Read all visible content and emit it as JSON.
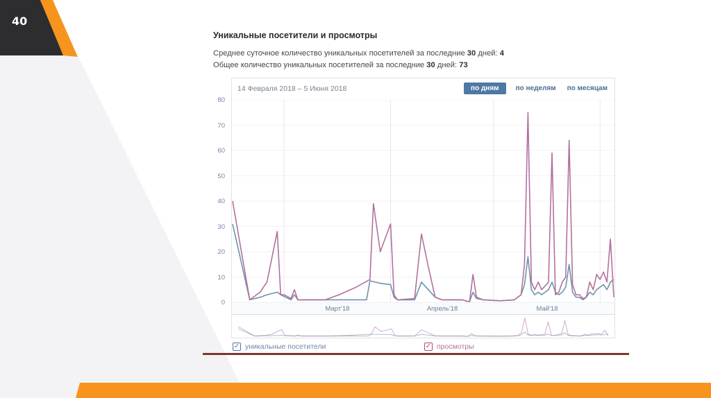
{
  "slide": {
    "number": "40",
    "accent_orange": "#f7941d",
    "maroon_line_color": "#7e362d",
    "dark_corner_color": "#2d2d2f"
  },
  "stats": {
    "title": "Уникальные посетители и просмотры",
    "avg_line": {
      "t1": "Среднее суточное количество уникальных посетителей за последние",
      "b1": "30",
      "t2": "дней:",
      "b2": "4"
    },
    "total_line": {
      "t1": "Общее количество уникальных посетителей за последние",
      "b1": "30",
      "t2": "дней:",
      "b2": "73"
    }
  },
  "widget": {
    "date_range": "14 Февраля 2018 – 5 Июня 2018",
    "tabs": {
      "active_index": 0,
      "items": [
        "по дням",
        "по неделям",
        "по месяцам"
      ]
    },
    "legend": [
      {
        "label": "уникальные посетители",
        "checked": true,
        "color": "#4a76a8"
      },
      {
        "label": "просмотры",
        "checked": true,
        "color": "#b14f62"
      }
    ],
    "check_glyph": "✓"
  },
  "chart_data": {
    "type": "line",
    "title": "Уникальные посетители и просмотры",
    "date_range_label": "14 Февраля 2018 – 5 Июня 2018",
    "x_start": "2018-02-14",
    "x_end": "2018-06-05",
    "days_total": 111,
    "x_axis_labels": [
      "Март'18",
      "Апрель'18",
      "Май'18"
    ],
    "month_separators_day": [
      15,
      46,
      76,
      107
    ],
    "ylim": [
      0,
      80
    ],
    "yticks": [
      0,
      10,
      20,
      30,
      40,
      50,
      60,
      70,
      80
    ],
    "grid": true,
    "legend_position": "bottom",
    "has_overview_strip": true,
    "series": [
      {
        "name": "уникальные посетители",
        "color": "#6f92aa",
        "points": [
          [
            0,
            31
          ],
          [
            5,
            1
          ],
          [
            8,
            2
          ],
          [
            10,
            3
          ],
          [
            13,
            4
          ],
          [
            14,
            3
          ],
          [
            17,
            1
          ],
          [
            18,
            3
          ],
          [
            19,
            1
          ],
          [
            27,
            1
          ],
          [
            35,
            1
          ],
          [
            39,
            1
          ],
          [
            40,
            8.5
          ],
          [
            43,
            7.5
          ],
          [
            46,
            7
          ],
          [
            47,
            2
          ],
          [
            48,
            1
          ],
          [
            53,
            1
          ],
          [
            55,
            8
          ],
          [
            57,
            5
          ],
          [
            59,
            2
          ],
          [
            61,
            1
          ],
          [
            67,
            1
          ],
          [
            68,
            0.5
          ],
          [
            69,
            0.3
          ],
          [
            70,
            4
          ],
          [
            71,
            1.5
          ],
          [
            73,
            1
          ],
          [
            78,
            0.6
          ],
          [
            82,
            1
          ],
          [
            84,
            3
          ],
          [
            85,
            7
          ],
          [
            86,
            18
          ],
          [
            87,
            5
          ],
          [
            88,
            3
          ],
          [
            89,
            4
          ],
          [
            90,
            3
          ],
          [
            91,
            4
          ],
          [
            92,
            5
          ],
          [
            93,
            8
          ],
          [
            94,
            4
          ],
          [
            95,
            3
          ],
          [
            96,
            4
          ],
          [
            97,
            6
          ],
          [
            98,
            15
          ],
          [
            99,
            4
          ],
          [
            100,
            2
          ],
          [
            101,
            2
          ],
          [
            102,
            1
          ],
          [
            103,
            2
          ],
          [
            104,
            4
          ],
          [
            105,
            3
          ],
          [
            106,
            5
          ],
          [
            107,
            6
          ],
          [
            108,
            7
          ],
          [
            109,
            5
          ],
          [
            110,
            8
          ],
          [
            111,
            9
          ]
        ]
      },
      {
        "name": "просмотры",
        "color": "#b3709e",
        "points": [
          [
            0,
            40
          ],
          [
            5,
            1
          ],
          [
            8,
            4
          ],
          [
            10,
            8
          ],
          [
            13,
            28
          ],
          [
            14,
            3
          ],
          [
            15,
            3
          ],
          [
            17,
            1.5
          ],
          [
            18,
            5
          ],
          [
            19,
            1
          ],
          [
            21,
            1
          ],
          [
            27,
            1
          ],
          [
            31,
            3
          ],
          [
            36,
            6
          ],
          [
            40,
            9
          ],
          [
            41,
            39
          ],
          [
            43,
            20
          ],
          [
            46,
            31
          ],
          [
            47,
            3
          ],
          [
            48,
            1
          ],
          [
            53,
            1.5
          ],
          [
            55,
            27
          ],
          [
            57,
            14
          ],
          [
            59,
            2
          ],
          [
            61,
            1
          ],
          [
            67,
            1
          ],
          [
            68,
            0.5
          ],
          [
            69,
            0.3
          ],
          [
            70,
            11
          ],
          [
            71,
            2
          ],
          [
            73,
            1
          ],
          [
            78,
            0.6
          ],
          [
            82,
            1
          ],
          [
            84,
            3
          ],
          [
            85,
            15
          ],
          [
            86,
            75
          ],
          [
            87,
            8
          ],
          [
            88,
            5
          ],
          [
            89,
            8
          ],
          [
            90,
            5
          ],
          [
            91,
            6.5
          ],
          [
            92,
            8
          ],
          [
            93,
            59
          ],
          [
            94,
            3
          ],
          [
            95,
            4
          ],
          [
            96,
            8
          ],
          [
            97,
            10
          ],
          [
            98,
            64
          ],
          [
            99,
            7
          ],
          [
            100,
            3
          ],
          [
            101,
            3
          ],
          [
            102,
            1.5
          ],
          [
            103,
            2
          ],
          [
            104,
            8
          ],
          [
            105,
            5
          ],
          [
            106,
            11
          ],
          [
            107,
            9
          ],
          [
            108,
            12
          ],
          [
            109,
            8
          ],
          [
            110,
            25
          ],
          [
            111,
            2
          ]
        ]
      }
    ],
    "colors": {
      "grid": "#f1f2f5",
      "month_separator": "#ece4ec"
    }
  }
}
